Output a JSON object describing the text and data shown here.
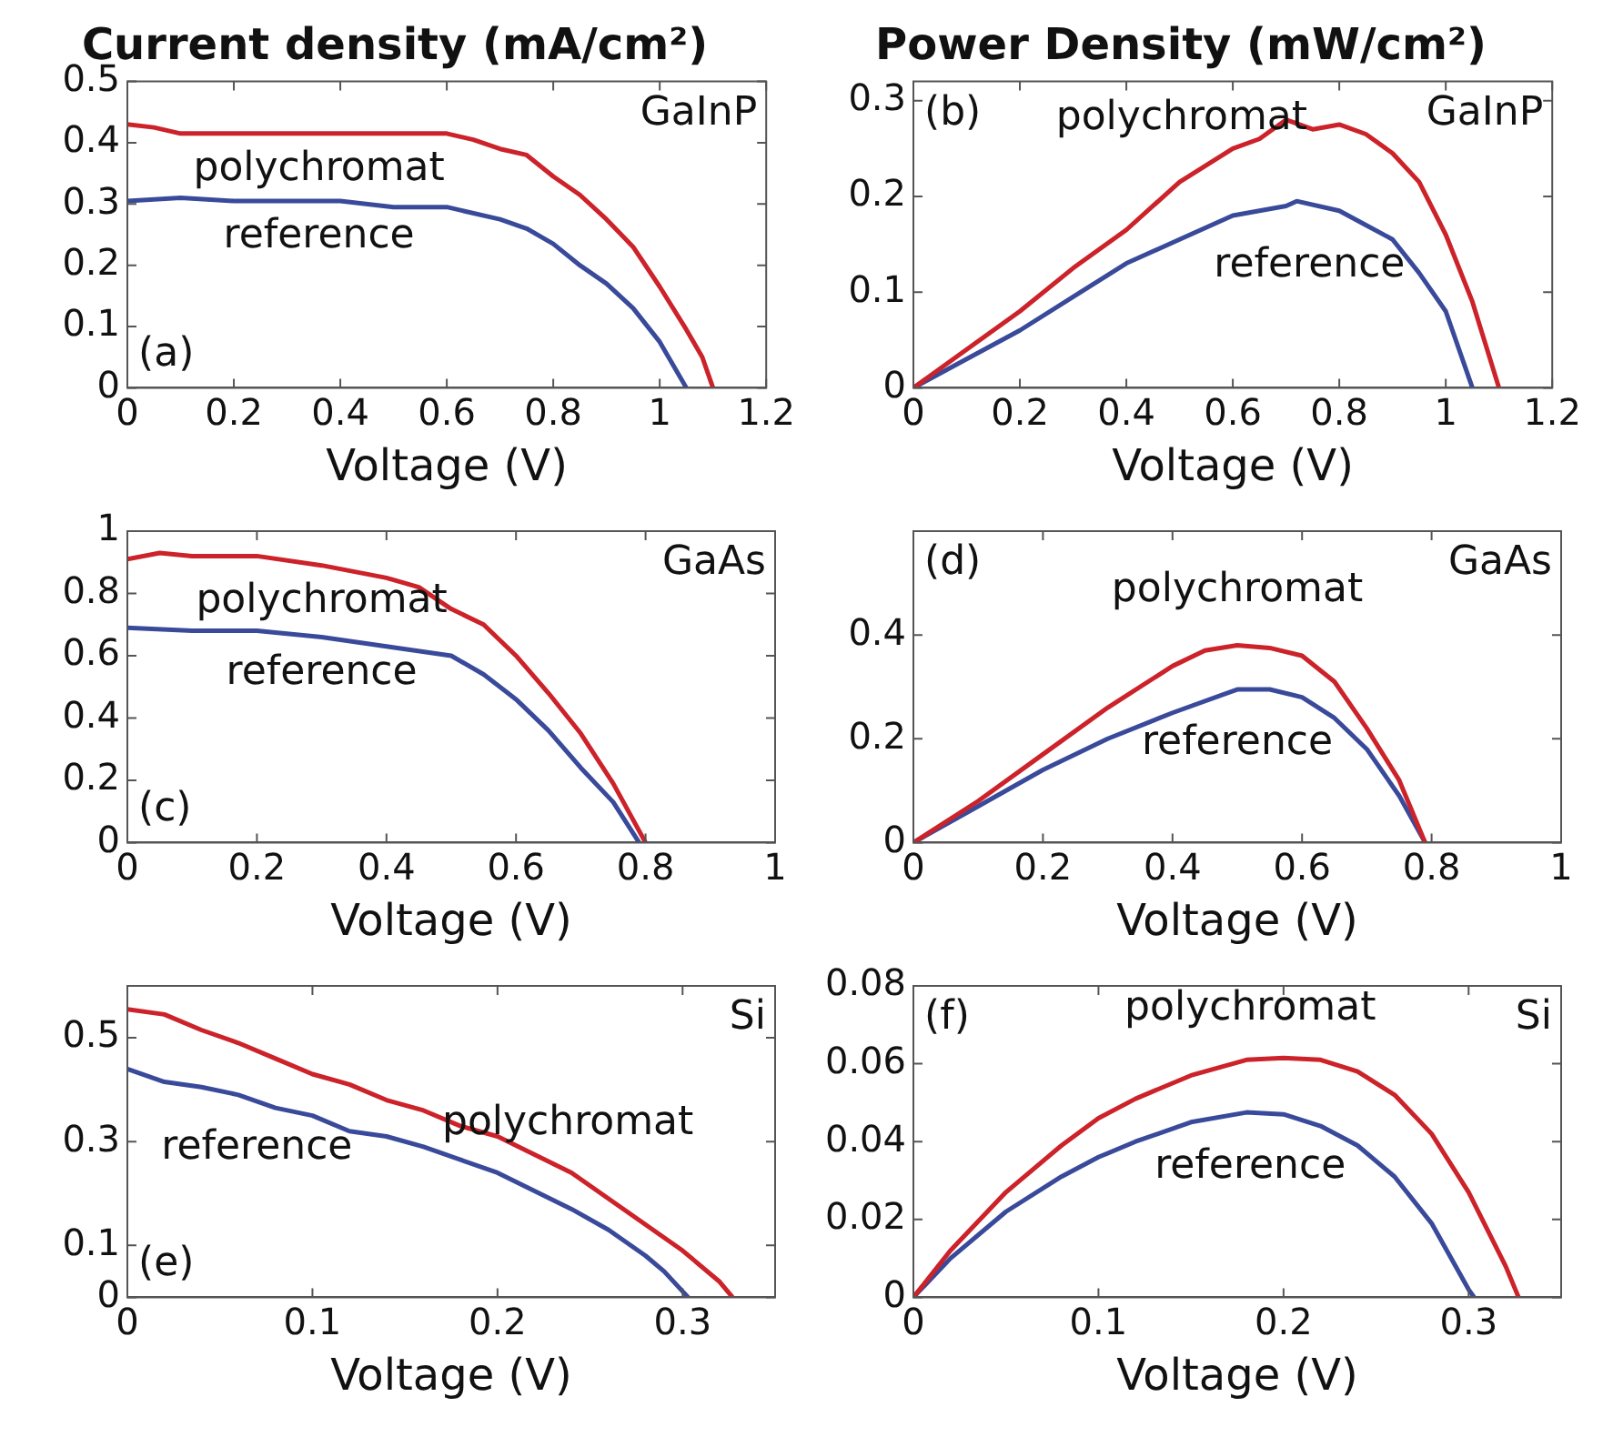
{
  "chart_data": [
    {
      "type": "line",
      "title": "Current density (mA/cm²)",
      "xlabel": "Voltage (V)",
      "annotations": [
        "(a)",
        "GaInP"
      ],
      "xlim": [
        0,
        1.2
      ],
      "xticks": [
        0,
        0.2,
        0.4,
        0.6,
        0.8,
        1,
        1.2
      ],
      "ylim": [
        0,
        0.5
      ],
      "yticks": [
        0,
        0.1,
        0.2,
        0.3,
        0.4,
        0.5
      ],
      "grid": false,
      "legend": false,
      "line_style": "solid",
      "marker": "none",
      "series": [
        {
          "name": "polychromat",
          "color": "#cc2229",
          "x": [
            0,
            0.05,
            0.1,
            0.2,
            0.3,
            0.4,
            0.5,
            0.6,
            0.65,
            0.7,
            0.75,
            0.8,
            0.85,
            0.9,
            0.95,
            1.0,
            1.05,
            1.08,
            1.1
          ],
          "values": [
            0.43,
            0.425,
            0.415,
            0.415,
            0.415,
            0.415,
            0.415,
            0.415,
            0.405,
            0.39,
            0.38,
            0.345,
            0.315,
            0.275,
            0.23,
            0.165,
            0.095,
            0.05,
            0
          ]
        },
        {
          "name": "reference",
          "color": "#3a4a9a",
          "x": [
            0,
            0.1,
            0.2,
            0.3,
            0.4,
            0.5,
            0.6,
            0.7,
            0.75,
            0.8,
            0.85,
            0.9,
            0.95,
            1.0,
            1.03,
            1.05
          ],
          "values": [
            0.305,
            0.31,
            0.305,
            0.305,
            0.305,
            0.295,
            0.295,
            0.275,
            0.26,
            0.235,
            0.2,
            0.17,
            0.13,
            0.075,
            0.03,
            0
          ]
        }
      ]
    },
    {
      "type": "line",
      "title": "Power Density (mW/cm²)",
      "xlabel": "Voltage (V)",
      "annotations": [
        "(b)",
        "GaInP"
      ],
      "xlim": [
        0,
        1.2
      ],
      "xticks": [
        0,
        0.2,
        0.4,
        0.6,
        0.8,
        1,
        1.2
      ],
      "ylim": [
        0,
        0.32
      ],
      "yticks": [
        0,
        0.1,
        0.2,
        0.3
      ],
      "grid": false,
      "legend": false,
      "line_style": "solid",
      "marker": "none",
      "series": [
        {
          "name": "polychromat",
          "color": "#cc2229",
          "x": [
            0,
            0.1,
            0.2,
            0.3,
            0.4,
            0.5,
            0.6,
            0.65,
            0.7,
            0.75,
            0.8,
            0.85,
            0.9,
            0.95,
            1.0,
            1.05,
            1.1
          ],
          "values": [
            0,
            0.04,
            0.08,
            0.125,
            0.165,
            0.215,
            0.25,
            0.26,
            0.28,
            0.27,
            0.275,
            0.265,
            0.245,
            0.215,
            0.16,
            0.09,
            0
          ]
        },
        {
          "name": "reference",
          "color": "#3a4a9a",
          "x": [
            0,
            0.1,
            0.2,
            0.3,
            0.4,
            0.5,
            0.6,
            0.7,
            0.72,
            0.8,
            0.85,
            0.9,
            0.95,
            1.0,
            1.05
          ],
          "values": [
            0,
            0.03,
            0.06,
            0.095,
            0.13,
            0.155,
            0.18,
            0.19,
            0.195,
            0.185,
            0.17,
            0.155,
            0.12,
            0.08,
            0
          ]
        }
      ]
    },
    {
      "type": "line",
      "xlabel": "Voltage (V)",
      "annotations": [
        "(c)",
        "GaAs"
      ],
      "xlim": [
        0,
        1
      ],
      "xticks": [
        0,
        0.2,
        0.4,
        0.6,
        0.8,
        1
      ],
      "ylim": [
        0,
        1
      ],
      "yticks": [
        0,
        0.2,
        0.4,
        0.6,
        0.8,
        1
      ],
      "grid": false,
      "legend": false,
      "line_style": "solid",
      "marker": "none",
      "series": [
        {
          "name": "polychromat",
          "color": "#cc2229",
          "x": [
            0,
            0.05,
            0.1,
            0.2,
            0.3,
            0.4,
            0.45,
            0.5,
            0.55,
            0.6,
            0.65,
            0.7,
            0.75,
            0.8
          ],
          "values": [
            0.91,
            0.93,
            0.92,
            0.92,
            0.89,
            0.85,
            0.82,
            0.75,
            0.7,
            0.6,
            0.48,
            0.35,
            0.19,
            0
          ]
        },
        {
          "name": "reference",
          "color": "#3a4a9a",
          "x": [
            0,
            0.1,
            0.2,
            0.3,
            0.4,
            0.5,
            0.55,
            0.6,
            0.65,
            0.7,
            0.75,
            0.79
          ],
          "values": [
            0.69,
            0.68,
            0.68,
            0.66,
            0.63,
            0.6,
            0.54,
            0.46,
            0.36,
            0.24,
            0.13,
            0
          ]
        }
      ]
    },
    {
      "type": "line",
      "xlabel": "Voltage (V)",
      "annotations": [
        "(d)",
        "GaAs"
      ],
      "xlim": [
        0,
        1
      ],
      "xticks": [
        0,
        0.2,
        0.4,
        0.6,
        0.8,
        1
      ],
      "ylim": [
        0,
        0.6
      ],
      "yticks": [
        0,
        0.2,
        0.4
      ],
      "grid": false,
      "legend": false,
      "line_style": "solid",
      "marker": "none",
      "series": [
        {
          "name": "polychromat",
          "color": "#cc2229",
          "x": [
            0,
            0.1,
            0.2,
            0.3,
            0.4,
            0.45,
            0.5,
            0.55,
            0.6,
            0.65,
            0.7,
            0.75,
            0.79
          ],
          "values": [
            0,
            0.08,
            0.17,
            0.26,
            0.34,
            0.37,
            0.38,
            0.375,
            0.36,
            0.31,
            0.22,
            0.12,
            0
          ]
        },
        {
          "name": "reference",
          "color": "#3a4a9a",
          "x": [
            0,
            0.1,
            0.2,
            0.3,
            0.4,
            0.5,
            0.55,
            0.6,
            0.65,
            0.7,
            0.75,
            0.79
          ],
          "values": [
            0,
            0.07,
            0.14,
            0.2,
            0.25,
            0.295,
            0.295,
            0.28,
            0.24,
            0.18,
            0.09,
            0
          ]
        }
      ]
    },
    {
      "type": "line",
      "xlabel": "Voltage (V)",
      "annotations": [
        "(e)",
        "Si"
      ],
      "xlim": [
        0,
        0.35
      ],
      "xticks": [
        0,
        0.1,
        0.2,
        0.3
      ],
      "ylim": [
        0,
        0.6
      ],
      "yticks": [
        0,
        0.1,
        0.3,
        0.5
      ],
      "grid": false,
      "legend": false,
      "line_style": "solid",
      "marker": "none",
      "series": [
        {
          "name": "polychromat",
          "color": "#cc2229",
          "x": [
            0,
            0.02,
            0.04,
            0.06,
            0.08,
            0.1,
            0.12,
            0.14,
            0.16,
            0.18,
            0.2,
            0.22,
            0.24,
            0.26,
            0.28,
            0.3,
            0.32,
            0.327
          ],
          "values": [
            0.555,
            0.545,
            0.515,
            0.49,
            0.46,
            0.43,
            0.41,
            0.38,
            0.36,
            0.33,
            0.31,
            0.275,
            0.24,
            0.19,
            0.14,
            0.09,
            0.03,
            0
          ]
        },
        {
          "name": "reference",
          "color": "#3a4a9a",
          "x": [
            0,
            0.02,
            0.04,
            0.06,
            0.08,
            0.1,
            0.12,
            0.14,
            0.16,
            0.18,
            0.2,
            0.22,
            0.24,
            0.26,
            0.28,
            0.29,
            0.303
          ],
          "values": [
            0.44,
            0.415,
            0.405,
            0.39,
            0.365,
            0.35,
            0.32,
            0.31,
            0.29,
            0.265,
            0.24,
            0.205,
            0.17,
            0.13,
            0.08,
            0.05,
            0
          ]
        }
      ]
    },
    {
      "type": "line",
      "xlabel": "Voltage (V)",
      "annotations": [
        "(f)",
        "Si"
      ],
      "xlim": [
        0,
        0.35
      ],
      "xticks": [
        0,
        0.1,
        0.2,
        0.3
      ],
      "ylim": [
        0,
        0.08
      ],
      "yticks": [
        0,
        0.02,
        0.04,
        0.06,
        0.08
      ],
      "grid": false,
      "legend": false,
      "line_style": "solid",
      "marker": "none",
      "series": [
        {
          "name": "polychromat",
          "color": "#cc2229",
          "x": [
            0,
            0.02,
            0.05,
            0.08,
            0.1,
            0.12,
            0.15,
            0.18,
            0.2,
            0.22,
            0.24,
            0.26,
            0.28,
            0.3,
            0.32,
            0.327
          ],
          "values": [
            0,
            0.012,
            0.027,
            0.039,
            0.046,
            0.051,
            0.057,
            0.061,
            0.0615,
            0.061,
            0.058,
            0.052,
            0.042,
            0.027,
            0.008,
            0
          ]
        },
        {
          "name": "reference",
          "color": "#3a4a9a",
          "x": [
            0,
            0.02,
            0.05,
            0.08,
            0.1,
            0.12,
            0.15,
            0.18,
            0.2,
            0.22,
            0.24,
            0.26,
            0.28,
            0.3,
            0.303
          ],
          "values": [
            0,
            0.01,
            0.022,
            0.031,
            0.036,
            0.04,
            0.045,
            0.0475,
            0.047,
            0.044,
            0.039,
            0.031,
            0.019,
            0.002,
            0
          ]
        }
      ]
    }
  ]
}
